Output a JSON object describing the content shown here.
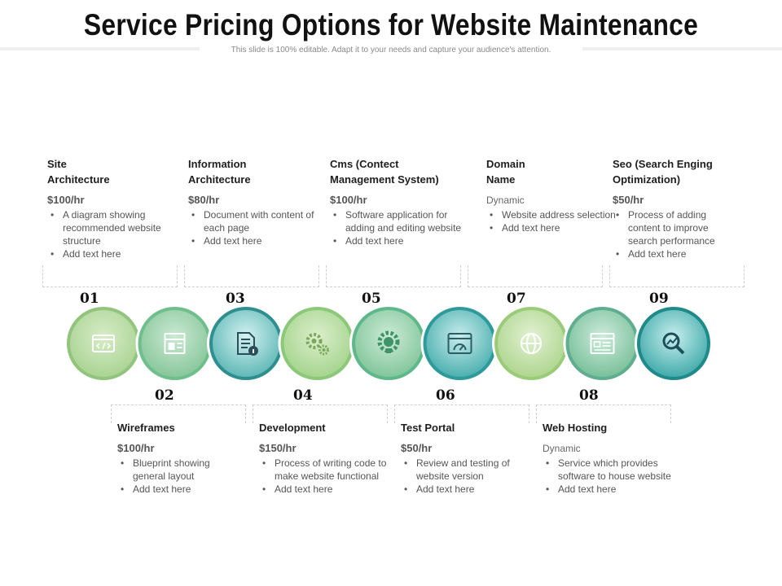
{
  "title": "Service Pricing Options for Website Maintenance",
  "subtitle": "This slide is 100% editable. Adapt it to your needs and capture your audience's attention.",
  "steps": [
    {
      "num": "01",
      "heading_lines": [
        "Site",
        "Architecture"
      ],
      "price": "$100/hr",
      "bullets": [
        "A diagram showing recommended website structure",
        "Add text here"
      ],
      "icon": "code-window-icon",
      "ring": "#92c47e",
      "fill": "#b9dba6"
    },
    {
      "num": "02",
      "heading_lines": [
        "Wireframes"
      ],
      "price": "$100/hr",
      "bullets": [
        "Blueprint showing general layout",
        "Add text here"
      ],
      "icon": "wireframe-layout-icon",
      "ring": "#6fbf8c",
      "fill": "#a3d3ae"
    },
    {
      "num": "03",
      "heading_lines": [
        "Information",
        "Architecture"
      ],
      "price": "$80/hr",
      "bullets": [
        "Document with content of each page",
        "Add text here"
      ],
      "icon": "document-info-icon",
      "ring": "#2f8f8f",
      "fill": "#8fd3d3"
    },
    {
      "num": "04",
      "heading_lines": [
        "Development"
      ],
      "price": "$150/hr",
      "bullets": [
        "Process of writing code to make website functional",
        "Add text here"
      ],
      "icon": "gears-icon",
      "ring": "#8cc87a",
      "fill": "#b6dca4"
    },
    {
      "num": "05",
      "heading_lines": [
        "Cms (Contect",
        "Management System)"
      ],
      "price": "$100/hr",
      "bullets": [
        "Software application for adding and editing website",
        "Add text here"
      ],
      "icon": "gear-bulb-icon",
      "ring": "#5fb88a",
      "fill": "#9fd2ad"
    },
    {
      "num": "06",
      "heading_lines": [
        "Test Portal"
      ],
      "price": "$50/hr",
      "bullets": [
        "Review and testing of website version",
        "Add text here"
      ],
      "icon": "browser-gauge-icon",
      "ring": "#2e9a9a",
      "fill": "#7fcaca"
    },
    {
      "num": "07",
      "heading_lines": [
        "Domain",
        "Name"
      ],
      "price": "Dynamic",
      "bullets": [
        "Website address selection",
        "Add text here"
      ],
      "icon": "globe-icon",
      "ring": "#9acb78",
      "fill": "#c3e1a9"
    },
    {
      "num": "08",
      "heading_lines": [
        "Web Hosting"
      ],
      "price": "Dynamic",
      "bullets": [
        "Service which provides software to house website",
        "Add text here"
      ],
      "icon": "hosting-dashboard-icon",
      "ring": "#5fae8f",
      "fill": "#98cdb0"
    },
    {
      "num": "09",
      "heading_lines": [
        "Seo (Search Enging",
        "Optimization)"
      ],
      "price": "$50/hr",
      "bullets": [
        "Process of adding content to improve search performance",
        "Add text here"
      ],
      "icon": "search-analytics-icon",
      "ring": "#1f8a8a",
      "fill": "#6cc7c4"
    }
  ]
}
